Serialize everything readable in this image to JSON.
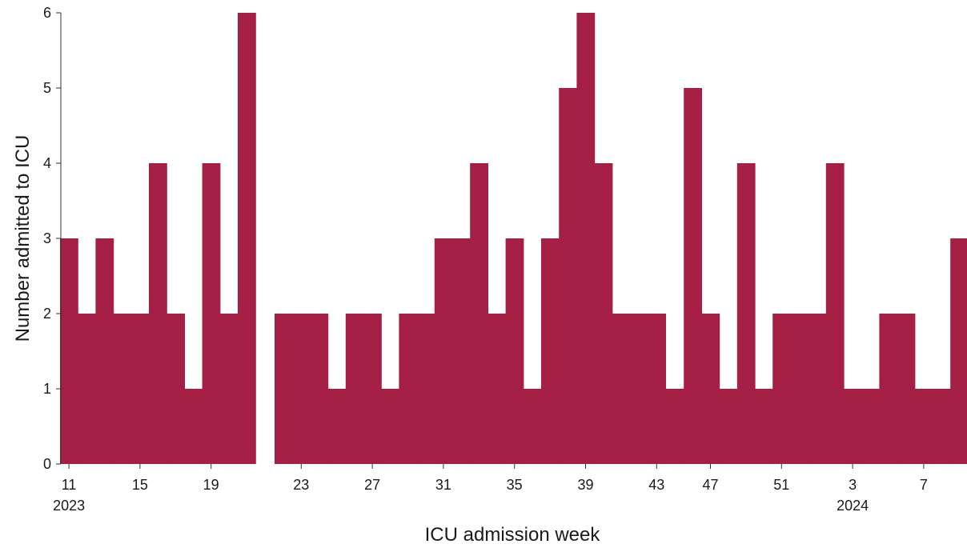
{
  "chart_data": {
    "type": "bar",
    "title": "",
    "xlabel": "ICU admission week",
    "ylabel": "Number admitted to ICU",
    "ylim": [
      0,
      6
    ],
    "y_ticks": [
      "0",
      "1",
      "2",
      "3",
      "4",
      "5",
      "6"
    ],
    "bar_color": "#A51F45",
    "grid": false,
    "panels": [
      {
        "weeks": [
          11,
          12,
          13,
          14,
          15,
          16,
          17,
          18,
          19,
          20,
          21
        ],
        "values": [
          3,
          2,
          3,
          2,
          2,
          4,
          2,
          1,
          4,
          2,
          6
        ],
        "x_ticks": [
          {
            "week": 11,
            "label": "11"
          },
          {
            "week": 15,
            "label": "15"
          },
          {
            "week": 19,
            "label": "19"
          }
        ],
        "year_label": {
          "week": 11,
          "label": "2023"
        }
      },
      {
        "weeks": [
          22,
          23,
          24,
          25,
          26,
          27,
          28,
          29,
          30,
          31,
          32,
          33,
          34,
          35,
          36,
          37,
          38,
          39,
          40,
          41,
          42,
          43
        ],
        "values": [
          2,
          2,
          2,
          1,
          2,
          2,
          1,
          2,
          2,
          3,
          3,
          4,
          2,
          3,
          1,
          3,
          5,
          6,
          4,
          2,
          2,
          2
        ],
        "x_ticks": [
          {
            "week": 23,
            "label": "23"
          },
          {
            "week": 27,
            "label": "27"
          },
          {
            "week": 31,
            "label": "31"
          },
          {
            "week": 35,
            "label": "35"
          },
          {
            "week": 39,
            "label": "39"
          },
          {
            "week": 43,
            "label": "43"
          }
        ]
      },
      {
        "weeks": [
          45,
          46,
          47,
          48,
          49,
          50,
          51,
          52,
          1,
          2,
          3,
          4,
          5,
          6,
          7,
          8,
          9
        ],
        "values": [
          1,
          5,
          2,
          1,
          4,
          1,
          2,
          2,
          2,
          4,
          1,
          1,
          2,
          2,
          1,
          1,
          3
        ],
        "x_ticks": [
          {
            "week": 47,
            "label": "47"
          },
          {
            "week": 51,
            "label": "51"
          },
          {
            "week": 3,
            "label": "3"
          },
          {
            "week": 7,
            "label": "7"
          }
        ],
        "year_label": {
          "week": 3,
          "label": "2024"
        }
      }
    ]
  }
}
